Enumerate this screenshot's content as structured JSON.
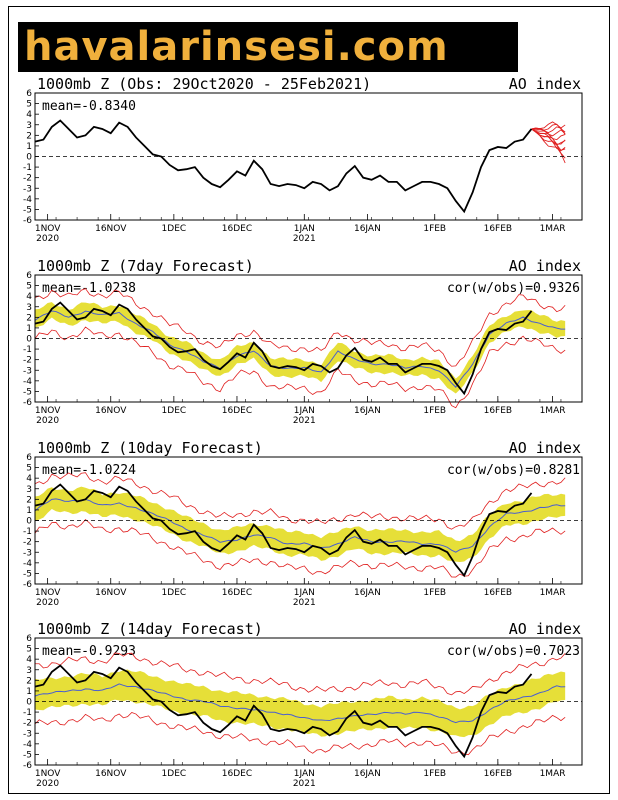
{
  "logo": {
    "text": "havalarinsesi.com"
  },
  "chart_data": [
    {
      "type": "line",
      "title": "1000mb Z (Obs: 29Oct2020 - 25Feb2021)",
      "index_label": "AO index",
      "mean_label": "mean=-0.8340",
      "cor_label": "",
      "ylim": [
        -6,
        6
      ],
      "yticks": [
        "6",
        "5",
        "4",
        "3",
        "2",
        "1",
        "0",
        "-1",
        "-2",
        "-3",
        "-4",
        "-5",
        "-6"
      ],
      "xticks": [
        {
          "day": 3,
          "label": "1NOV",
          "sub": "2020"
        },
        {
          "day": 18,
          "label": "16NOV",
          "sub": ""
        },
        {
          "day": 33,
          "label": "1DEC",
          "sub": ""
        },
        {
          "day": 48,
          "label": "16DEC",
          "sub": ""
        },
        {
          "day": 64,
          "label": "1JAN",
          "sub": "2021"
        },
        {
          "day": 79,
          "label": "16JAN",
          "sub": ""
        },
        {
          "day": 95,
          "label": "1FEB",
          "sub": ""
        },
        {
          "day": 110,
          "label": "16FEB",
          "sub": ""
        },
        {
          "day": 123,
          "label": "1MAR",
          "sub": ""
        }
      ],
      "series": [
        {
          "name": "Observed",
          "x": [
            0,
            2,
            4,
            6,
            8,
            10,
            12,
            14,
            16,
            18,
            20,
            22,
            24,
            26,
            28,
            30,
            32,
            34,
            36,
            38,
            40,
            42,
            44,
            46,
            48,
            50,
            52,
            54,
            56,
            58,
            60,
            62,
            64,
            66,
            68,
            70,
            72,
            74,
            76,
            78,
            80,
            82,
            84,
            86,
            88,
            90,
            92,
            94,
            96,
            98,
            100,
            102,
            104,
            106,
            108,
            110,
            112,
            114,
            116,
            118
          ],
          "y": [
            1.4,
            1.6,
            2.8,
            3.4,
            2.6,
            1.8,
            2.0,
            2.8,
            2.6,
            2.2,
            3.2,
            2.8,
            1.8,
            1.0,
            0.2,
            0.0,
            -0.8,
            -1.3,
            -1.2,
            -1.0,
            -2.0,
            -2.6,
            -2.9,
            -2.2,
            -1.4,
            -1.8,
            -0.4,
            -1.2,
            -2.6,
            -2.8,
            -2.6,
            -2.7,
            -3.0,
            -2.4,
            -2.6,
            -3.2,
            -2.8,
            -1.6,
            -0.9,
            -2.0,
            -2.2,
            -1.8,
            -2.4,
            -2.4,
            -3.2,
            -2.8,
            -2.4,
            -2.4,
            -2.6,
            -3.0,
            -4.2,
            -5.2,
            -3.4,
            -1.0,
            0.6,
            0.9,
            0.8,
            1.4,
            1.6,
            2.6
          ]
        }
      ],
      "forecast_members_from_day": 118,
      "forecast_members_to_day": 126,
      "forecast_members_start": 2.6,
      "forecast_members_end": [
        -0.2,
        0.3,
        0.8,
        1.2,
        1.6,
        2.0,
        2.4,
        2.8,
        3.2,
        0.6,
        1.0
      ]
    },
    {
      "type": "line",
      "title": "1000mb Z (7day Forecast)",
      "index_label": "AO index",
      "mean_label": "mean=-1.0238",
      "cor_label": "cor(w/obs)=0.9326",
      "ylim": [
        -6,
        6
      ],
      "yticks": [
        "6",
        "5",
        "4",
        "3",
        "2",
        "1",
        "0",
        "-1",
        "-2",
        "-3",
        "-4",
        "-5",
        "-6"
      ],
      "xticks": [
        {
          "day": 3,
          "label": "1NOV",
          "sub": "2020"
        },
        {
          "day": 18,
          "label": "16NOV",
          "sub": ""
        },
        {
          "day": 33,
          "label": "1DEC",
          "sub": ""
        },
        {
          "day": 48,
          "label": "16DEC",
          "sub": ""
        },
        {
          "day": 64,
          "label": "1JAN",
          "sub": "2021"
        },
        {
          "day": 79,
          "label": "16JAN",
          "sub": ""
        },
        {
          "day": 95,
          "label": "1FEB",
          "sub": ""
        },
        {
          "day": 110,
          "label": "16FEB",
          "sub": ""
        },
        {
          "day": 123,
          "label": "1MAR",
          "sub": ""
        }
      ],
      "series": [
        {
          "name": "Observed",
          "x": [
            0,
            2,
            4,
            6,
            8,
            10,
            12,
            14,
            16,
            18,
            20,
            22,
            24,
            26,
            28,
            30,
            32,
            34,
            36,
            38,
            40,
            42,
            44,
            46,
            48,
            50,
            52,
            54,
            56,
            58,
            60,
            62,
            64,
            66,
            68,
            70,
            72,
            74,
            76,
            78,
            80,
            82,
            84,
            86,
            88,
            90,
            92,
            94,
            96,
            98,
            100,
            102,
            104,
            106,
            108,
            110,
            112,
            114,
            116,
            118
          ],
          "y": [
            1.4,
            1.6,
            2.8,
            3.4,
            2.6,
            1.8,
            2.0,
            2.8,
            2.6,
            2.2,
            3.2,
            2.8,
            1.8,
            1.0,
            0.2,
            0.0,
            -0.8,
            -1.3,
            -1.2,
            -1.0,
            -2.0,
            -2.6,
            -2.9,
            -2.2,
            -1.4,
            -1.8,
            -0.4,
            -1.2,
            -2.6,
            -2.8,
            -2.6,
            -2.7,
            -3.0,
            -2.4,
            -2.6,
            -3.2,
            -2.8,
            -1.6,
            -0.9,
            -2.0,
            -2.2,
            -1.8,
            -2.4,
            -2.4,
            -3.2,
            -2.8,
            -2.4,
            -2.4,
            -2.6,
            -3.0,
            -4.2,
            -5.2,
            -3.4,
            -1.0,
            0.6,
            0.9,
            0.8,
            1.4,
            1.6,
            2.6
          ]
        },
        {
          "name": "Forecast mean",
          "x": [
            0,
            4,
            8,
            12,
            16,
            20,
            24,
            28,
            32,
            36,
            40,
            44,
            48,
            52,
            56,
            60,
            64,
            68,
            72,
            76,
            80,
            84,
            88,
            92,
            96,
            100,
            104,
            108,
            112,
            116,
            120,
            124
          ],
          "y": [
            1.8,
            2.6,
            2.0,
            2.6,
            2.2,
            2.4,
            1.4,
            0.6,
            -0.6,
            -1.2,
            -2.2,
            -2.8,
            -1.6,
            -1.2,
            -2.6,
            -2.8,
            -2.8,
            -3.2,
            -1.2,
            -2.0,
            -2.4,
            -2.4,
            -2.8,
            -2.6,
            -3.0,
            -4.6,
            -2.4,
            0.4,
            1.4,
            2.0,
            1.4,
            0.9
          ]
        }
      ],
      "spread": 0.8,
      "outer_spread": 1.9
    },
    {
      "type": "line",
      "title": "1000mb Z (10day Forecast)",
      "index_label": "AO index",
      "mean_label": "mean=-1.0224",
      "cor_label": "cor(w/obs)=0.8281",
      "ylim": [
        -6,
        6
      ],
      "yticks": [
        "6",
        "5",
        "4",
        "3",
        "2",
        "1",
        "0",
        "-1",
        "-2",
        "-3",
        "-4",
        "-5",
        "-6"
      ],
      "xticks": [
        {
          "day": 3,
          "label": "1NOV",
          "sub": "2020"
        },
        {
          "day": 18,
          "label": "16NOV",
          "sub": ""
        },
        {
          "day": 33,
          "label": "1DEC",
          "sub": ""
        },
        {
          "day": 48,
          "label": "16DEC",
          "sub": ""
        },
        {
          "day": 64,
          "label": "1JAN",
          "sub": "2021"
        },
        {
          "day": 79,
          "label": "16JAN",
          "sub": ""
        },
        {
          "day": 95,
          "label": "1FEB",
          "sub": ""
        },
        {
          "day": 110,
          "label": "16FEB",
          "sub": ""
        },
        {
          "day": 123,
          "label": "1MAR",
          "sub": ""
        }
      ],
      "series": [
        {
          "name": "Observed",
          "x": [
            0,
            2,
            4,
            6,
            8,
            10,
            12,
            14,
            16,
            18,
            20,
            22,
            24,
            26,
            28,
            30,
            32,
            34,
            36,
            38,
            40,
            42,
            44,
            46,
            48,
            50,
            52,
            54,
            56,
            58,
            60,
            62,
            64,
            66,
            68,
            70,
            72,
            74,
            76,
            78,
            80,
            82,
            84,
            86,
            88,
            90,
            92,
            94,
            96,
            98,
            100,
            102,
            104,
            106,
            108,
            110,
            112,
            114,
            116,
            118
          ],
          "y": [
            1.4,
            1.6,
            2.8,
            3.4,
            2.6,
            1.8,
            2.0,
            2.8,
            2.6,
            2.2,
            3.2,
            2.8,
            1.8,
            1.0,
            0.2,
            0.0,
            -0.8,
            -1.3,
            -1.2,
            -1.0,
            -2.0,
            -2.6,
            -2.9,
            -2.2,
            -1.4,
            -1.8,
            -0.4,
            -1.2,
            -2.6,
            -2.8,
            -2.6,
            -2.7,
            -3.0,
            -2.4,
            -2.6,
            -3.2,
            -2.8,
            -1.6,
            -0.9,
            -2.0,
            -2.2,
            -1.8,
            -2.4,
            -2.4,
            -3.2,
            -2.8,
            -2.4,
            -2.4,
            -2.6,
            -3.0,
            -4.2,
            -5.2,
            -3.4,
            -1.0,
            0.6,
            0.9,
            0.8,
            1.4,
            1.6,
            2.6
          ]
        },
        {
          "name": "Forecast mean",
          "x": [
            0,
            4,
            8,
            12,
            16,
            20,
            24,
            28,
            32,
            36,
            40,
            44,
            48,
            52,
            56,
            60,
            64,
            68,
            72,
            76,
            80,
            84,
            88,
            92,
            96,
            100,
            104,
            108,
            112,
            116,
            120,
            124
          ],
          "y": [
            1.0,
            2.0,
            1.8,
            2.0,
            1.4,
            1.6,
            1.2,
            0.6,
            0.0,
            -0.8,
            -1.4,
            -2.0,
            -1.8,
            -1.4,
            -1.6,
            -2.2,
            -2.2,
            -2.6,
            -2.2,
            -1.6,
            -2.0,
            -2.0,
            -2.0,
            -2.2,
            -2.2,
            -3.0,
            -2.4,
            -0.6,
            0.6,
            0.8,
            1.2,
            1.4
          ]
        }
      ],
      "spread": 1.1,
      "outer_spread": 2.3
    },
    {
      "type": "line",
      "title": "1000mb Z (14day Forecast)",
      "index_label": "AO index",
      "mean_label": "mean=-0.9293",
      "cor_label": "cor(w/obs)=0.7023",
      "ylim": [
        -6,
        6
      ],
      "yticks": [
        "6",
        "5",
        "4",
        "3",
        "2",
        "1",
        "0",
        "-1",
        "-2",
        "-3",
        "-4",
        "-5",
        "-6"
      ],
      "xticks": [
        {
          "day": 3,
          "label": "1NOV",
          "sub": "2020"
        },
        {
          "day": 18,
          "label": "16NOV",
          "sub": ""
        },
        {
          "day": 33,
          "label": "1DEC",
          "sub": ""
        },
        {
          "day": 48,
          "label": "16DEC",
          "sub": ""
        },
        {
          "day": 64,
          "label": "1JAN",
          "sub": "2021"
        },
        {
          "day": 79,
          "label": "16JAN",
          "sub": ""
        },
        {
          "day": 95,
          "label": "1FEB",
          "sub": ""
        },
        {
          "day": 110,
          "label": "16FEB",
          "sub": ""
        },
        {
          "day": 123,
          "label": "1MAR",
          "sub": ""
        }
      ],
      "series": [
        {
          "name": "Observed",
          "x": [
            0,
            2,
            4,
            6,
            8,
            10,
            12,
            14,
            16,
            18,
            20,
            22,
            24,
            26,
            28,
            30,
            32,
            34,
            36,
            38,
            40,
            42,
            44,
            46,
            48,
            50,
            52,
            54,
            56,
            58,
            60,
            62,
            64,
            66,
            68,
            70,
            72,
            74,
            76,
            78,
            80,
            82,
            84,
            86,
            88,
            90,
            92,
            94,
            96,
            98,
            100,
            102,
            104,
            106,
            108,
            110,
            112,
            114,
            116,
            118
          ],
          "y": [
            1.4,
            1.6,
            2.8,
            3.4,
            2.6,
            1.8,
            2.0,
            2.8,
            2.6,
            2.2,
            3.2,
            2.8,
            1.8,
            1.0,
            0.2,
            0.0,
            -0.8,
            -1.3,
            -1.2,
            -1.0,
            -2.0,
            -2.6,
            -2.9,
            -2.2,
            -1.4,
            -1.8,
            -0.4,
            -1.2,
            -2.6,
            -2.8,
            -2.6,
            -2.7,
            -3.0,
            -2.4,
            -2.6,
            -3.2,
            -2.8,
            -1.6,
            -0.9,
            -2.0,
            -2.2,
            -1.8,
            -2.4,
            -2.4,
            -3.2,
            -2.8,
            -2.4,
            -2.4,
            -2.6,
            -3.0,
            -4.2,
            -5.2,
            -3.4,
            -1.0,
            0.6,
            0.9,
            0.8,
            1.4,
            1.6,
            2.6
          ]
        },
        {
          "name": "Forecast mean",
          "x": [
            0,
            4,
            8,
            12,
            16,
            20,
            24,
            28,
            32,
            36,
            40,
            44,
            48,
            52,
            56,
            60,
            64,
            68,
            72,
            76,
            80,
            84,
            88,
            92,
            96,
            100,
            104,
            108,
            112,
            116,
            120,
            124
          ],
          "y": [
            0.6,
            0.8,
            1.0,
            1.2,
            1.0,
            1.6,
            1.4,
            1.0,
            0.6,
            0.2,
            0.0,
            -0.4,
            -0.6,
            -0.8,
            -1.0,
            -1.2,
            -1.6,
            -1.8,
            -1.6,
            -1.4,
            -1.2,
            -1.0,
            -1.2,
            -1.0,
            -1.4,
            -2.0,
            -1.8,
            -0.8,
            0.0,
            0.4,
            0.8,
            1.4
          ]
        }
      ],
      "spread": 1.4,
      "outer_spread": 2.8
    }
  ],
  "colors": {
    "band": "#e6df38",
    "red": "#e02020",
    "blue": "#4a5fd0",
    "obs": "#000000"
  }
}
